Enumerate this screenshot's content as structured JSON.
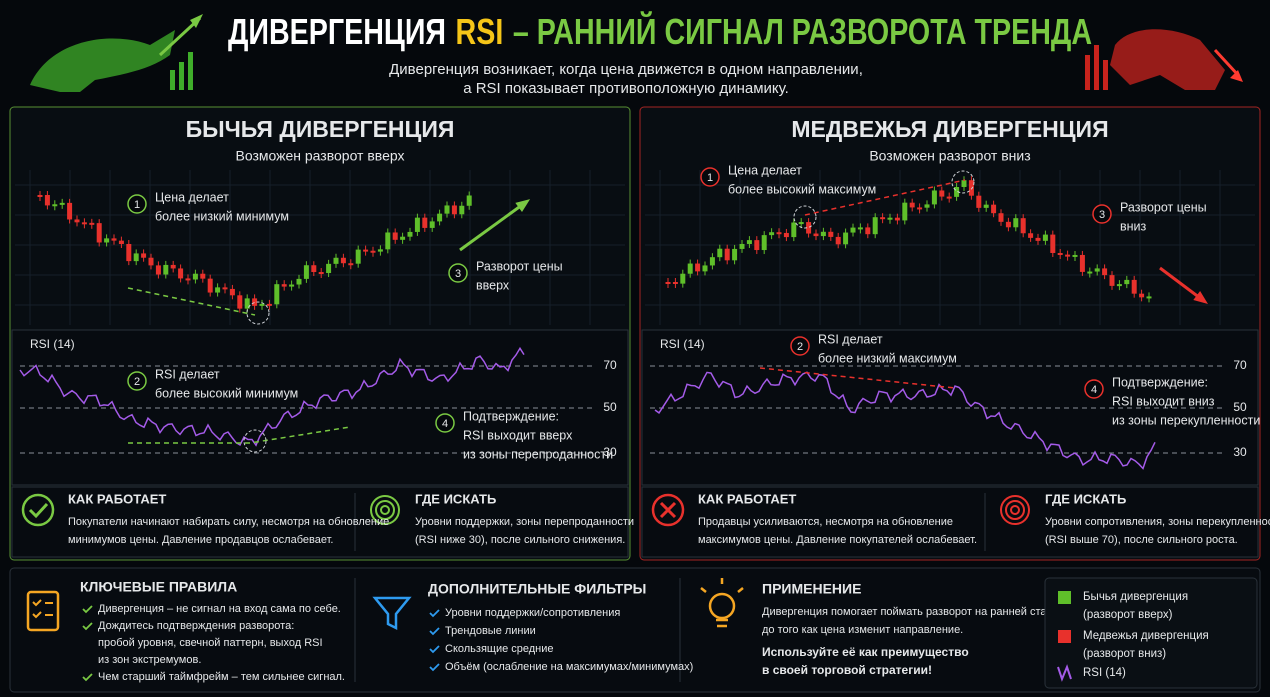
{
  "header": {
    "title_start": "ДИВЕРГЕНЦИЯ",
    "title_highlight": "RSI",
    "title_end": "– РАННИЙ СИГНАЛ РАЗВОРОТА ТРЕНДА",
    "subtitle": [
      "Дивергенция возникает, когда цена движется в одном направлении,",
      "а RSI показывает противоположную динамику."
    ]
  },
  "panels": [
    {
      "title": "БЫЧЬЯ ДИВЕРГЕНЦИЯ",
      "subtitle": "Возможен разворот вверх",
      "color": "#7ac943",
      "rsi_label": "RSI (14)",
      "rsi_levels": [
        70,
        50,
        30
      ],
      "annotations": [
        {
          "number": 1,
          "lines": [
            "Цена делает",
            "более низкий минимум"
          ]
        },
        {
          "number": 2,
          "lines": [
            "RSI делает",
            "более высокий минимум"
          ]
        },
        {
          "number": 3,
          "lines": [
            "Разворот цены",
            "вверх"
          ]
        },
        {
          "number": 4,
          "lines": [
            "Подтверждение:",
            "RSI выходит вверх",
            "из зоны перепроданности"
          ]
        }
      ],
      "how": {
        "title": "КАК РАБОТАЕТ",
        "lines": [
          "Покупатели начинают набирать силу, несмотря на обновление",
          "минимумов цены. Давление продавцов ослабевает."
        ]
      },
      "where": {
        "title": "ГДЕ ИСКАТЬ",
        "lines": [
          "Уровни поддержки, зоны перепроданности",
          "(RSI ниже 30), после сильного снижения."
        ]
      }
    },
    {
      "title": "МЕДВЕЖЬЯ ДИВЕРГЕНЦИЯ",
      "subtitle": "Возможен разворот вниз",
      "color": "#e8312c",
      "rsi_label": "RSI (14)",
      "rsi_levels": [
        70,
        50,
        30
      ],
      "annotations": [
        {
          "number": 1,
          "lines": [
            "Цена делает",
            "более высокий максимум"
          ]
        },
        {
          "number": 2,
          "lines": [
            "RSI делает",
            "более низкий максимум"
          ]
        },
        {
          "number": 3,
          "lines": [
            "Разворот цены",
            "вниз"
          ]
        },
        {
          "number": 4,
          "lines": [
            "Подтверждение:",
            "RSI выходит вниз",
            "из зоны перекупленности"
          ]
        }
      ],
      "how": {
        "title": "КАК РАБОТАЕТ",
        "lines": [
          "Продавцы усиливаются, несмотря на обновление",
          "максимумов цены. Давление покупателей ослабевает."
        ]
      },
      "where": {
        "title": "ГДЕ ИСКАТЬ",
        "lines": [
          "Уровни сопротивления, зоны перекупленности",
          "(RSI выше 70), после сильного роста."
        ]
      }
    }
  ],
  "bottom": {
    "rules": {
      "title": "КЛЮЧЕВЫЕ ПРАВИЛА",
      "items": [
        [
          "Дивергенция – не сигнал на вход сама по себе."
        ],
        [
          "Дождитесь подтверждения разворота:",
          "пробой уровня, свечной паттерн, выход RSI",
          "из зон экстремумов."
        ],
        [
          "Чем старший таймфрейм – тем сильнее сигнал."
        ]
      ]
    },
    "filters": {
      "title": "ДОПОЛНИТЕЛЬНЫЕ ФИЛЬТРЫ",
      "items": [
        "Уровни поддержки/сопротивления",
        "Трендовые линии",
        "Скользящие средние",
        "Объём (ослабление на максимумах/минимумах)"
      ]
    },
    "application": {
      "title": "ПРИМЕНЕНИЕ",
      "lines": [
        "Дивергенция помогает поймать разворот на ранней стадии,",
        "до того как цена изменит направление."
      ],
      "highlight": [
        "Используйте её как преимущество",
        "в своей торговой стратегии!"
      ]
    },
    "legend": [
      {
        "lines": [
          "Бычья дивергенция",
          "(разворот вверх)"
        ],
        "color": "#5fbf2a"
      },
      {
        "lines": [
          "Медвежья дивергенция",
          "(разворот вниз)"
        ],
        "color": "#e8312c"
      },
      {
        "lines": [
          "RSI (14)"
        ],
        "color": "#a45be8"
      }
    ]
  }
}
